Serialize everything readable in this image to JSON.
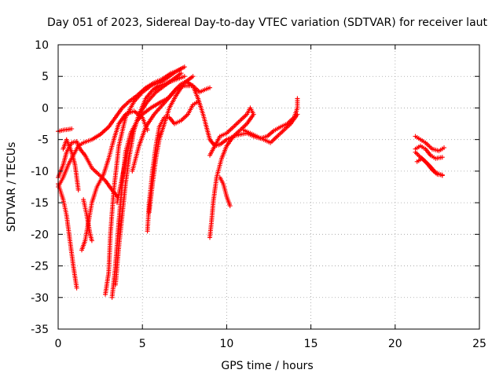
{
  "chart_data": {
    "type": "scatter",
    "title": "Day 051 of 2023, Sidereal Day-to-day VTEC variation (SDTVAR) for receiver laut",
    "xlabel": "GPS time / hours",
    "ylabel": "SDTVAR / TECUs",
    "xlim": [
      0,
      25
    ],
    "ylim": [
      -35,
      10
    ],
    "xticks": [
      "0",
      "5",
      "10",
      "15",
      "20",
      "25"
    ],
    "yticks": [
      "10",
      "5",
      "0",
      "-5",
      "-10",
      "-15",
      "-20",
      "-25",
      "-30",
      "-35"
    ],
    "grid": true,
    "marker": "plus",
    "color": "#ff0000",
    "series": [
      {
        "points": [
          [
            0.0,
            -3.7
          ],
          [
            0.3,
            -3.5
          ],
          [
            0.6,
            -3.4
          ],
          [
            0.8,
            -3.3
          ]
        ]
      },
      {
        "points": [
          [
            0.0,
            -12.0
          ],
          [
            0.3,
            -14.5
          ],
          [
            0.5,
            -17.0
          ],
          [
            0.7,
            -21.0
          ],
          [
            0.9,
            -25.0
          ],
          [
            1.1,
            -28.5
          ]
        ]
      },
      {
        "points": [
          [
            0.0,
            -12.5
          ],
          [
            0.3,
            -11.0
          ],
          [
            0.6,
            -9.0
          ],
          [
            0.9,
            -7.5
          ],
          [
            1.2,
            -6.0
          ],
          [
            1.5,
            -5.5
          ],
          [
            2.0,
            -5.0
          ],
          [
            2.5,
            -4.2
          ],
          [
            3.0,
            -3.0
          ],
          [
            3.4,
            -1.5
          ],
          [
            3.8,
            0.0
          ],
          [
            4.2,
            1.0
          ],
          [
            4.7,
            2.0
          ],
          [
            5.2,
            3.2
          ],
          [
            5.7,
            4.0
          ],
          [
            6.2,
            4.6
          ],
          [
            6.7,
            5.5
          ],
          [
            7.2,
            6.0
          ]
        ]
      },
      {
        "points": [
          [
            0.0,
            -11.0
          ],
          [
            0.3,
            -9.0
          ],
          [
            0.5,
            -7.0
          ],
          [
            0.8,
            -5.5
          ],
          [
            1.1,
            -5.3
          ],
          [
            1.3,
            -6.5
          ],
          [
            1.6,
            -7.5
          ],
          [
            2.0,
            -9.5
          ],
          [
            2.4,
            -10.5
          ],
          [
            2.8,
            -11.5
          ],
          [
            3.2,
            -13.0
          ],
          [
            3.5,
            -14.0
          ]
        ]
      },
      {
        "points": [
          [
            0.3,
            -6.5
          ],
          [
            0.5,
            -5.0
          ],
          [
            0.8,
            -7.0
          ],
          [
            1.0,
            -9.0
          ],
          [
            1.2,
            -13.0
          ]
        ]
      },
      {
        "points": [
          [
            1.4,
            -22.5
          ],
          [
            1.6,
            -21.0
          ],
          [
            1.8,
            -18.0
          ],
          [
            2.0,
            -15.0
          ],
          [
            2.3,
            -12.5
          ],
          [
            2.7,
            -10.5
          ],
          [
            3.0,
            -8.0
          ],
          [
            3.3,
            -5.0
          ],
          [
            3.6,
            -2.5
          ],
          [
            4.0,
            -1.0
          ],
          [
            4.5,
            -0.5
          ],
          [
            5.0,
            -1.5
          ],
          [
            5.3,
            -3.5
          ]
        ]
      },
      {
        "points": [
          [
            1.5,
            -14.5
          ],
          [
            1.7,
            -17.0
          ],
          [
            1.9,
            -20.0
          ],
          [
            2.0,
            -21.0
          ]
        ]
      },
      {
        "points": [
          [
            2.8,
            -29.5
          ],
          [
            3.0,
            -26.0
          ],
          [
            3.1,
            -20.0
          ],
          [
            3.3,
            -13.0
          ],
          [
            3.6,
            -6.0
          ],
          [
            4.0,
            -1.5
          ],
          [
            4.5,
            1.0
          ],
          [
            5.0,
            2.5
          ],
          [
            5.5,
            3.5
          ],
          [
            6.0,
            4.0
          ],
          [
            6.5,
            4.8
          ],
          [
            7.0,
            5.8
          ],
          [
            7.5,
            6.5
          ]
        ]
      },
      {
        "points": [
          [
            3.2,
            -30.0
          ],
          [
            3.4,
            -25.0
          ],
          [
            3.6,
            -18.0
          ],
          [
            3.8,
            -12.0
          ],
          [
            4.0,
            -7.0
          ],
          [
            4.3,
            -4.0
          ],
          [
            4.7,
            -2.0
          ],
          [
            5.0,
            -1.0
          ],
          [
            5.5,
            0.0
          ],
          [
            6.0,
            0.8
          ],
          [
            6.5,
            1.5
          ],
          [
            7.0,
            3.0
          ],
          [
            7.3,
            3.8
          ],
          [
            7.6,
            4.2
          ],
          [
            8.0,
            3.5
          ],
          [
            8.4,
            2.5
          ],
          [
            8.8,
            3.0
          ],
          [
            9.0,
            3.2
          ]
        ]
      },
      {
        "points": [
          [
            3.4,
            -28.0
          ],
          [
            3.6,
            -22.0
          ],
          [
            3.8,
            -17.0
          ],
          [
            4.0,
            -12.0
          ],
          [
            4.2,
            -8.0
          ],
          [
            4.5,
            -3.5
          ],
          [
            4.8,
            -1.0
          ],
          [
            5.2,
            1.5
          ],
          [
            5.6,
            2.8
          ],
          [
            6.0,
            3.5
          ],
          [
            6.5,
            4.0
          ],
          [
            7.0,
            4.5
          ],
          [
            7.5,
            5.0
          ]
        ]
      },
      {
        "points": [
          [
            3.5,
            -15.0
          ],
          [
            3.8,
            -11.0
          ],
          [
            4.1,
            -7.0
          ],
          [
            4.4,
            -4.0
          ],
          [
            4.8,
            -1.0
          ],
          [
            5.3,
            1.0
          ],
          [
            5.8,
            2.5
          ],
          [
            6.3,
            3.5
          ],
          [
            6.8,
            4.5
          ],
          [
            7.3,
            5.5
          ]
        ]
      },
      {
        "points": [
          [
            4.4,
            -10.0
          ],
          [
            4.8,
            -6.0
          ],
          [
            5.2,
            -3.0
          ],
          [
            5.7,
            -1.0
          ],
          [
            6.2,
            0.5
          ],
          [
            6.7,
            2.0
          ],
          [
            7.0,
            3.0
          ],
          [
            7.5,
            3.5
          ],
          [
            8.0,
            3.5
          ],
          [
            8.3,
            1.5
          ],
          [
            8.6,
            -1.0
          ],
          [
            8.8,
            -3.0
          ],
          [
            9.0,
            -5.0
          ],
          [
            9.3,
            -6.0
          ],
          [
            9.6,
            -5.8
          ],
          [
            10.0,
            -5.0
          ],
          [
            10.4,
            -4.5
          ],
          [
            10.8,
            -4.2
          ],
          [
            11.2,
            -4.0
          ],
          [
            11.6,
            -4.5
          ],
          [
            12.0,
            -4.8
          ],
          [
            12.4,
            -4.5
          ],
          [
            12.8,
            -3.6
          ],
          [
            13.2,
            -3.0
          ],
          [
            13.6,
            -2.5
          ],
          [
            14.0,
            -1.5
          ],
          [
            14.2,
            0.0
          ],
          [
            14.2,
            1.5
          ]
        ]
      },
      {
        "points": [
          [
            5.3,
            -19.5
          ],
          [
            5.4,
            -15.0
          ],
          [
            5.6,
            -10.0
          ],
          [
            5.8,
            -6.0
          ],
          [
            6.0,
            -3.0
          ],
          [
            6.3,
            -1.5
          ],
          [
            6.6,
            -1.5
          ],
          [
            6.9,
            -2.5
          ],
          [
            7.3,
            -2.0
          ],
          [
            7.7,
            -1.0
          ],
          [
            8.0,
            0.5
          ],
          [
            8.3,
            1.0
          ]
        ]
      },
      {
        "points": [
          [
            5.4,
            -16.5
          ],
          [
            5.6,
            -12.0
          ],
          [
            5.8,
            -8.0
          ],
          [
            6.0,
            -5.0
          ],
          [
            6.3,
            -2.5
          ],
          [
            6.6,
            0.0
          ],
          [
            7.0,
            2.0
          ],
          [
            7.5,
            4.0
          ],
          [
            8.0,
            5.0
          ]
        ]
      },
      {
        "points": [
          [
            9.0,
            -7.5
          ],
          [
            9.3,
            -6.0
          ],
          [
            9.6,
            -4.5
          ],
          [
            10.0,
            -4.0
          ],
          [
            10.4,
            -3.0
          ],
          [
            10.8,
            -2.0
          ],
          [
            11.2,
            -1.0
          ],
          [
            11.4,
            0.0
          ],
          [
            11.6,
            -1.0
          ],
          [
            11.2,
            -2.5
          ],
          [
            10.8,
            -3.5
          ],
          [
            10.4,
            -4.5
          ],
          [
            10.0,
            -6.0
          ],
          [
            9.7,
            -8.0
          ],
          [
            9.4,
            -11.0
          ],
          [
            9.2,
            -15.0
          ],
          [
            9.1,
            -18.0
          ],
          [
            9.0,
            -20.5
          ]
        ]
      },
      {
        "points": [
          [
            9.6,
            -11.0
          ],
          [
            9.8,
            -12.0
          ],
          [
            10.0,
            -14.0
          ],
          [
            10.2,
            -15.5
          ]
        ]
      },
      {
        "points": [
          [
            11.0,
            -3.5
          ],
          [
            11.4,
            -4.0
          ],
          [
            11.8,
            -4.5
          ],
          [
            12.2,
            -5.0
          ],
          [
            12.6,
            -5.5
          ],
          [
            13.0,
            -4.5
          ],
          [
            13.4,
            -3.5
          ],
          [
            13.8,
            -2.5
          ],
          [
            14.2,
            -1.0
          ]
        ]
      },
      {
        "points": [
          [
            21.2,
            -4.5
          ],
          [
            21.5,
            -5.0
          ],
          [
            21.8,
            -5.5
          ],
          [
            22.2,
            -6.5
          ],
          [
            22.6,
            -6.8
          ],
          [
            22.9,
            -6.3
          ]
        ]
      },
      {
        "points": [
          [
            21.2,
            -6.5
          ],
          [
            21.5,
            -6.0
          ],
          [
            21.8,
            -6.5
          ],
          [
            22.1,
            -7.5
          ],
          [
            22.4,
            -8.0
          ],
          [
            22.8,
            -7.8
          ]
        ]
      },
      {
        "points": [
          [
            21.2,
            -7.0
          ],
          [
            21.5,
            -7.8
          ],
          [
            21.8,
            -8.5
          ],
          [
            22.1,
            -9.3
          ],
          [
            22.4,
            -10.2
          ],
          [
            22.8,
            -10.7
          ]
        ]
      },
      {
        "points": [
          [
            21.3,
            -8.5
          ],
          [
            21.6,
            -8.0
          ],
          [
            21.9,
            -8.8
          ],
          [
            22.2,
            -9.8
          ],
          [
            22.5,
            -10.5
          ],
          [
            22.8,
            -10.6
          ]
        ]
      }
    ]
  }
}
